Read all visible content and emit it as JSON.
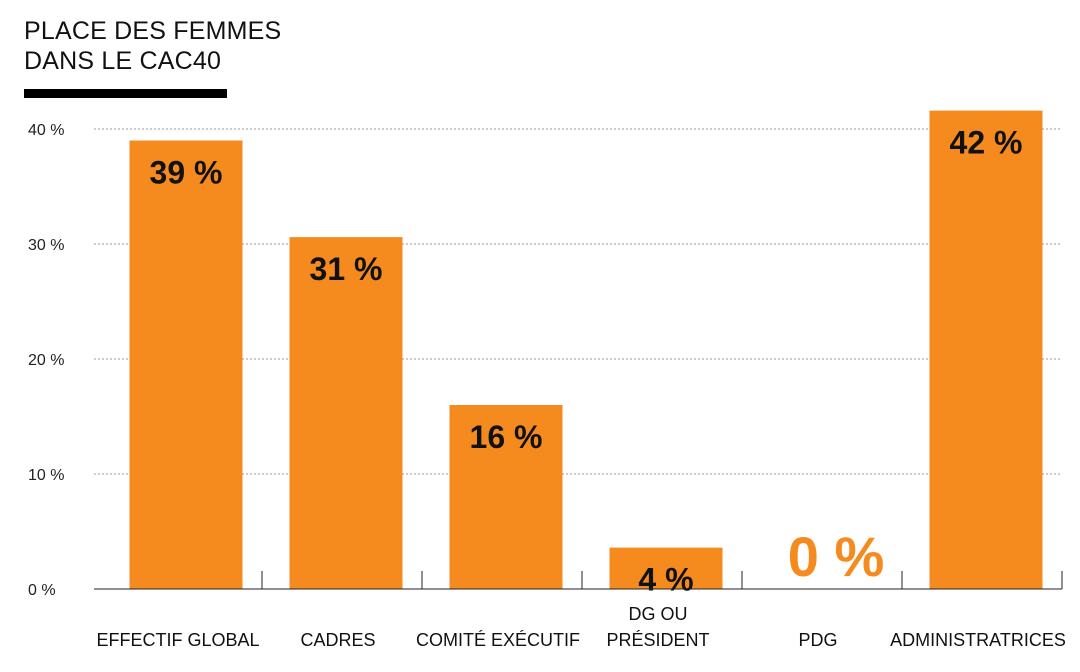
{
  "chart_data": {
    "type": "bar",
    "title_lines": [
      "PLACE DES FEMMES",
      "DANS LE CAC40"
    ],
    "categories": [
      [
        "EFFECTIF GLOBAL"
      ],
      [
        "CADRES"
      ],
      [
        "COMITÉ EXÉCUTIF"
      ],
      [
        "DG  OU",
        "PRÉSIDENT"
      ],
      [
        "PDG"
      ],
      [
        "ADMINISTRATRICES"
      ]
    ],
    "values": [
      39,
      30.6,
      16,
      3.6,
      0,
      41.6
    ],
    "value_labels": [
      "39 %",
      "31 %",
      "16 %",
      "4 %",
      "0 %",
      "42 %"
    ],
    "yticks": [
      0,
      10,
      20,
      30,
      40
    ],
    "ytick_labels": [
      "0 %",
      "10 %",
      "20 %",
      "30 %",
      "40 %"
    ],
    "ylim": [
      0,
      40
    ],
    "grid": true,
    "colors": {
      "bar": "#f58b1f",
      "grid": "#999999",
      "axis": "#222222",
      "text": "#111111"
    }
  }
}
